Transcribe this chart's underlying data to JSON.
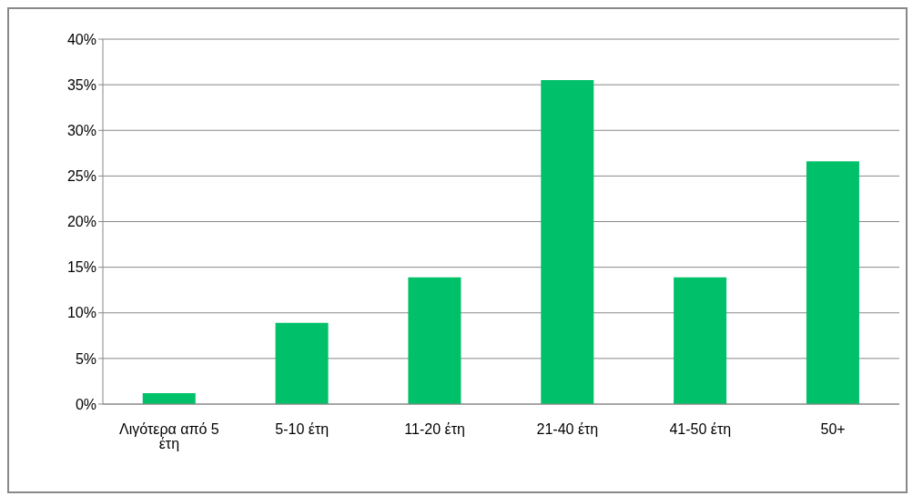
{
  "chart_data": {
    "type": "bar",
    "categories": [
      "Λιγότερα από 5 έτη",
      "5-10 έτη",
      "11-20 έτη",
      "21-40 έτη",
      "41-50 έτη",
      "50+"
    ],
    "values": [
      1.2,
      8.9,
      13.9,
      35.5,
      13.9,
      26.6
    ],
    "color": "#00c06a",
    "ylim": [
      0,
      40
    ],
    "yticks": [
      {
        "value": 0,
        "label": "0%"
      },
      {
        "value": 5,
        "label": "5%"
      },
      {
        "value": 10,
        "label": "10%"
      },
      {
        "value": 15,
        "label": "15%"
      },
      {
        "value": 20,
        "label": "20%"
      },
      {
        "value": 25,
        "label": "25%"
      },
      {
        "value": 30,
        "label": "30%"
      },
      {
        "value": 35,
        "label": "35%"
      },
      {
        "value": 40,
        "label": "40%"
      }
    ],
    "grid": "y",
    "legend": false
  }
}
